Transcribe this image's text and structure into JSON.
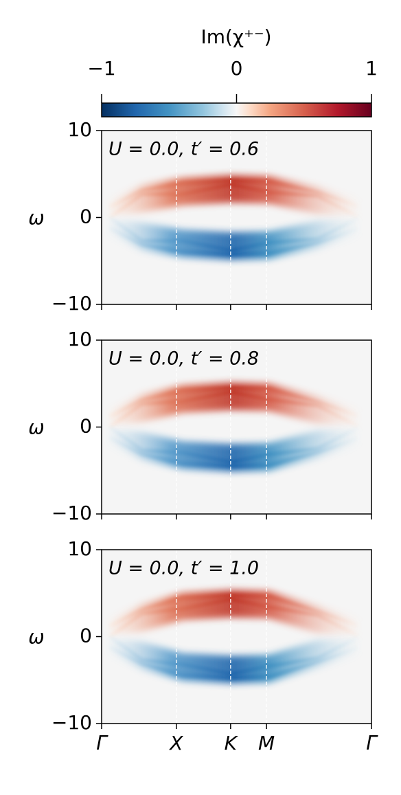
{
  "colorbar": {
    "label": "Im(χ⁺⁻)",
    "lim": [
      -1,
      1
    ],
    "ticks": [
      {
        "value": -1,
        "label": "−1"
      },
      0,
      1
    ]
  },
  "chart_data": [
    {
      "type": "heatmap",
      "annotation": "U = 0.0, t′ = 0.6",
      "ylabel": "ω",
      "ylim": [
        -10,
        10
      ],
      "yticks": [
        {
          "value": -10,
          "label": "−10"
        },
        0,
        10
      ],
      "xlim": [
        0,
        1
      ],
      "xticks": [
        {
          "value": 0,
          "label": ""
        },
        {
          "value": 0.277,
          "label": ""
        },
        {
          "value": 0.478,
          "label": ""
        },
        {
          "value": 0.611,
          "label": ""
        },
        {
          "value": 1,
          "label": ""
        }
      ],
      "vlines": [
        0.277,
        0.478,
        0.611
      ]
    },
    {
      "type": "heatmap",
      "annotation": "U = 0.0, t′ = 0.8",
      "ylabel": "ω",
      "ylim": [
        -10,
        10
      ],
      "yticks": [
        {
          "value": -10,
          "label": "−10"
        },
        0,
        10
      ],
      "xlim": [
        0,
        1
      ],
      "xticks": [
        {
          "value": 0,
          "label": ""
        },
        {
          "value": 0.277,
          "label": ""
        },
        {
          "value": 0.478,
          "label": ""
        },
        {
          "value": 0.611,
          "label": ""
        },
        {
          "value": 1,
          "label": ""
        }
      ],
      "vlines": [
        0.277,
        0.478,
        0.611
      ]
    },
    {
      "type": "heatmap",
      "annotation": "U = 0.0, t′ = 1.0",
      "ylabel": "ω",
      "ylim": [
        -10,
        10
      ],
      "yticks": [
        {
          "value": -10,
          "label": "−10"
        },
        0,
        10
      ],
      "xlim": [
        0,
        1
      ],
      "xticks": [
        {
          "value": 0,
          "label": "Γ"
        },
        {
          "value": 0.277,
          "label": "X"
        },
        {
          "value": 0.478,
          "label": "K"
        },
        {
          "value": 0.611,
          "label": "M"
        },
        {
          "value": 1,
          "label": "Γ"
        }
      ],
      "vlines": [
        0.277,
        0.478,
        0.611
      ]
    }
  ]
}
